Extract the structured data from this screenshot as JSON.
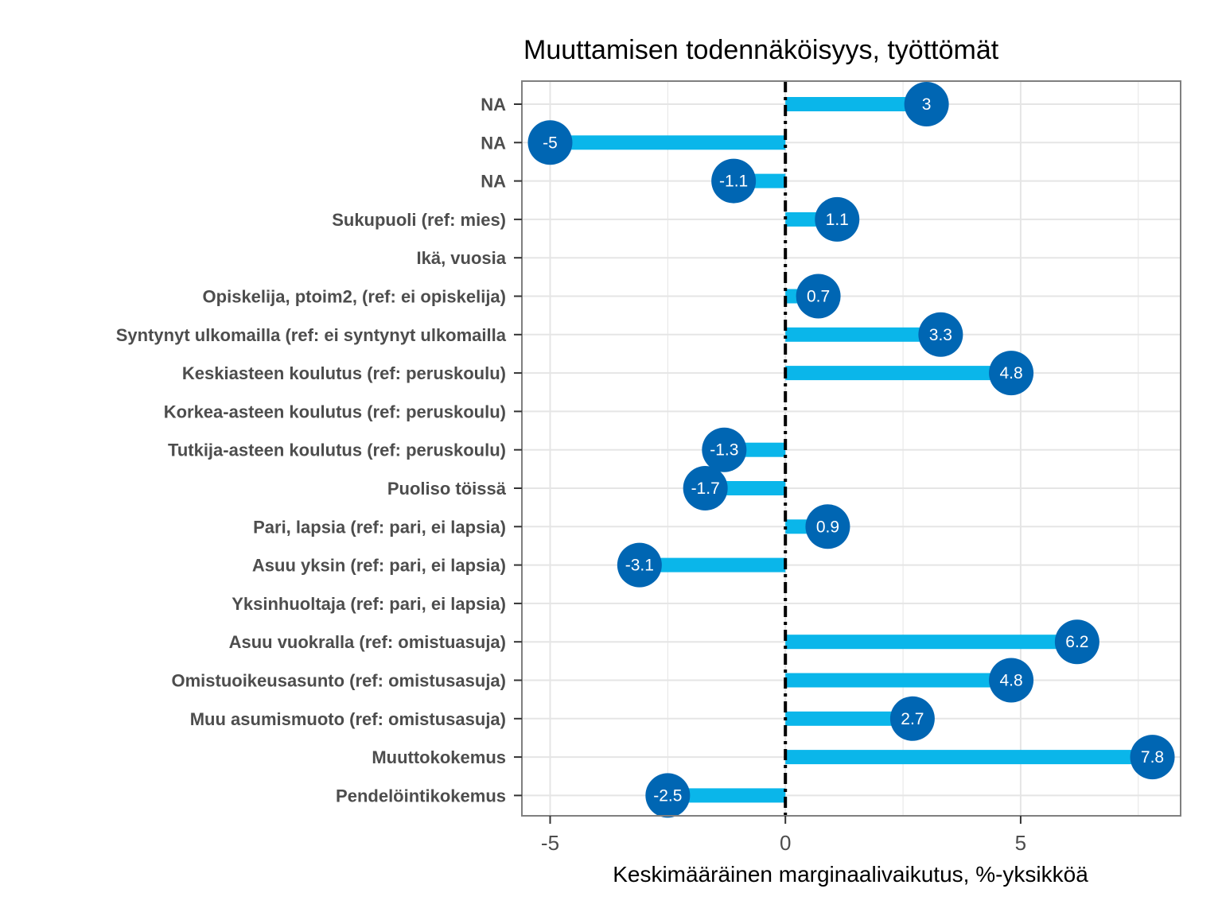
{
  "chart_data": {
    "type": "bar",
    "title": "Muuttamisen todennäköisyys, työttömät",
    "xlabel": "Keskimääräinen marginaalivaikutus, %-yksikköä",
    "ylabel": "",
    "xlim": [
      -5.6,
      8.4
    ],
    "xticks": [
      -5,
      0,
      5
    ],
    "xtick_labels": [
      "-5",
      "0",
      "5"
    ],
    "grid": true,
    "reference_line": 0,
    "colors": {
      "bar": "#0ab6ea",
      "point": "#0066b3",
      "refline": "#000000",
      "grid": "#e5e5e5",
      "frame": "#7f7f7f"
    },
    "categories": [
      "NA",
      "NA",
      "NA",
      "Sukupuoli (ref: mies)",
      "Ikä, vuosia",
      "Opiskelija, ptoim2, (ref: ei opiskelija)",
      "Syntynyt ulkomailla (ref: ei syntynyt ulkomailla",
      "Keskiasteen koulutus (ref: peruskoulu)",
      "Korkea-asteen koulutus (ref: peruskoulu)",
      "Tutkija-asteen koulutus (ref: peruskoulu)",
      "Puoliso töissä",
      "Pari, lapsia (ref: pari, ei lapsia)",
      "Asuu yksin (ref: pari, ei lapsia)",
      "Yksinhuoltaja (ref: pari, ei lapsia)",
      "Asuu vuokralla (ref: omistuasuja)",
      "Omistuoikeusasunto (ref: omistusasuja)",
      "Muu asumismuoto (ref: omistusasuja)",
      "Muuttokokemus",
      "Pendelöintikokemus"
    ],
    "values": [
      3,
      -5,
      -1.1,
      1.1,
      null,
      0.7,
      3.3,
      4.8,
      null,
      -1.3,
      -1.7,
      0.9,
      -3.1,
      null,
      6.2,
      4.8,
      2.7,
      7.8,
      -2.5
    ],
    "value_labels": [
      "3",
      "-5",
      "-1.1",
      "1.1",
      "",
      "0.7",
      "3.3",
      "4.8",
      "",
      "-1.3",
      "-1.7",
      "0.9",
      "-3.1",
      "",
      "6.2",
      "4.8",
      "2.7",
      "7.8",
      "-2.5"
    ]
  }
}
